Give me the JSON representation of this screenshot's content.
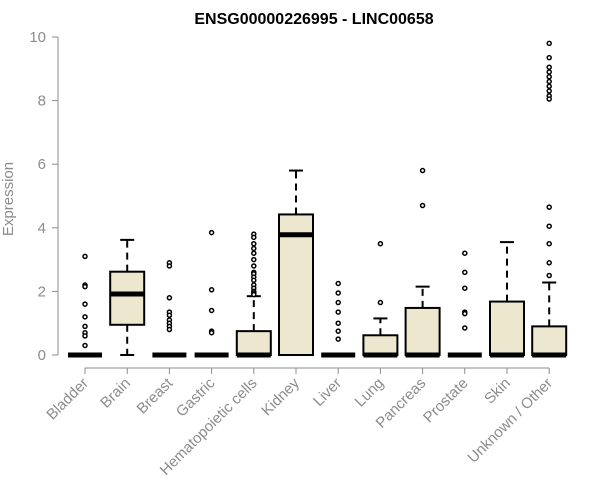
{
  "chart_data": {
    "type": "boxplot",
    "title": "ENSG00000226995 - LINC00658",
    "xlabel": "",
    "ylabel": "Expression",
    "ylim": [
      0,
      10
    ],
    "yticks": [
      0,
      2,
      4,
      6,
      8,
      10
    ],
    "grid": false,
    "legend": "none",
    "colors": {
      "box_fill": "#ede7cf",
      "line": "#000000",
      "axis_text": "#8c8c8c",
      "title": "#000000"
    },
    "categories": [
      "Bladder",
      "Brain",
      "Breast",
      "Gastric",
      "Hematopoietic cells",
      "Kidney",
      "Liver",
      "Lung",
      "Pancreas",
      "Prostate",
      "Skin",
      "Unknown / Other"
    ],
    "boxes": [
      {
        "q1": 0,
        "median": 0,
        "q3": 0,
        "whisker_low": 0,
        "whisker_high": 0,
        "outliers": [
          3.1,
          2.2,
          2.15,
          1.6,
          1.2,
          0.9,
          0.7,
          0.6,
          0.3
        ]
      },
      {
        "q1": 0.95,
        "median": 1.92,
        "q3": 2.62,
        "whisker_low": 0,
        "whisker_high": 3.62,
        "outliers": []
      },
      {
        "q1": 0,
        "median": 0,
        "q3": 0,
        "whisker_low": 0,
        "whisker_high": 0,
        "outliers": [
          2.9,
          2.8,
          1.8,
          1.35,
          1.25,
          1.1,
          1.0,
          0.9,
          0.8
        ]
      },
      {
        "q1": 0,
        "median": 0,
        "q3": 0,
        "whisker_low": 0,
        "whisker_high": 0,
        "outliers": [
          3.85,
          2.05,
          1.4,
          0.75,
          0.7
        ]
      },
      {
        "q1": 0,
        "median": 0,
        "q3": 0.75,
        "whisker_low": 0,
        "whisker_high": 1.85,
        "outliers": [
          3.8,
          3.7,
          3.5,
          3.35,
          3.2,
          3.0,
          2.8,
          2.6,
          2.55,
          2.45,
          2.35,
          2.2,
          2.1,
          2.0,
          1.95,
          1.9
        ]
      },
      {
        "q1": 0,
        "median": 3.78,
        "q3": 4.42,
        "whisker_low": 0,
        "whisker_high": 5.8,
        "outliers": []
      },
      {
        "q1": 0,
        "median": 0,
        "q3": 0,
        "whisker_low": 0,
        "whisker_high": 0,
        "outliers": [
          2.25,
          1.95,
          1.65,
          1.35,
          1.0,
          0.75,
          0.5
        ]
      },
      {
        "q1": 0,
        "median": 0,
        "q3": 0.62,
        "whisker_low": 0,
        "whisker_high": 1.15,
        "outliers": [
          3.5,
          1.65
        ]
      },
      {
        "q1": 0,
        "median": 0,
        "q3": 1.48,
        "whisker_low": 0,
        "whisker_high": 2.15,
        "outliers": [
          5.8,
          4.7
        ]
      },
      {
        "q1": 0,
        "median": 0,
        "q3": 0,
        "whisker_low": 0,
        "whisker_high": 0,
        "outliers": [
          3.2,
          2.6,
          2.1,
          1.35,
          1.3,
          0.85
        ]
      },
      {
        "q1": 0,
        "median": 0,
        "q3": 1.68,
        "whisker_low": 0,
        "whisker_high": 3.55,
        "outliers": []
      },
      {
        "q1": 0,
        "median": 0,
        "q3": 0.9,
        "whisker_low": 0,
        "whisker_high": 2.28,
        "outliers": [
          9.8,
          9.35,
          9.05,
          8.9,
          8.75,
          8.6,
          8.45,
          8.3,
          8.15,
          8.05,
          4.65,
          4.05,
          3.5,
          2.9,
          2.5
        ]
      }
    ]
  }
}
